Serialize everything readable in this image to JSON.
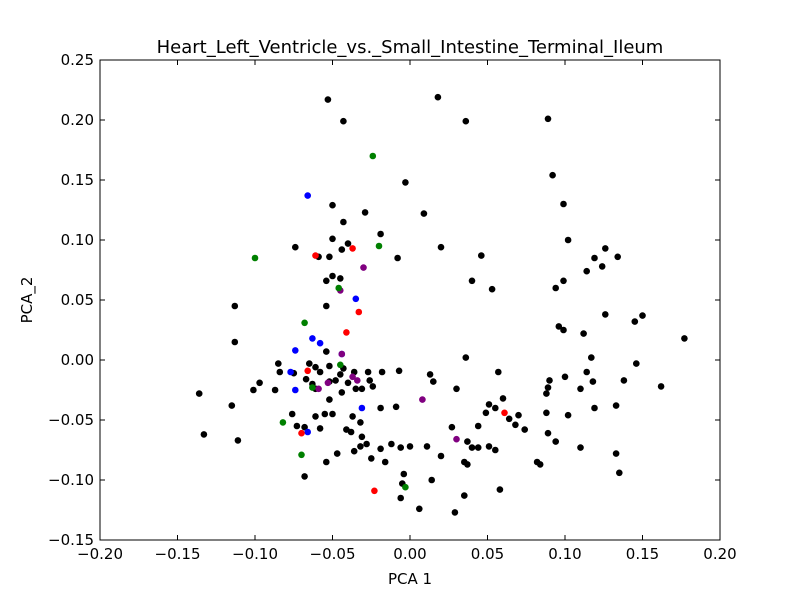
{
  "chart_data": {
    "type": "scatter",
    "title": "Heart_Left_Ventricle_vs._Small_Intestine_Terminal_Ileum",
    "xlabel": "PCA 1",
    "ylabel": "PCA_2",
    "xlim": [
      -0.2,
      0.2
    ],
    "ylim": [
      -0.15,
      0.25
    ],
    "xticks": [
      -0.2,
      -0.15,
      -0.1,
      -0.05,
      0.0,
      0.05,
      0.1,
      0.15,
      0.2
    ],
    "yticks": [
      -0.15,
      -0.1,
      -0.05,
      0.0,
      0.05,
      0.1,
      0.15,
      0.2,
      0.25
    ],
    "xtick_labels": [
      "−0.20",
      "−0.15",
      "−0.10",
      "−0.05",
      "0.00",
      "0.05",
      "0.10",
      "0.15",
      "0.20"
    ],
    "ytick_labels": [
      "−0.15",
      "−0.10",
      "−0.05",
      "0.00",
      "0.05",
      "0.10",
      "0.15",
      "0.20",
      "0.25"
    ],
    "grid": false,
    "legend": "none",
    "series": [
      {
        "color": "#000000",
        "points": [
          [
            -0.053,
            0.217
          ],
          [
            -0.043,
            0.199
          ],
          [
            0.018,
            0.219
          ],
          [
            0.036,
            0.199
          ],
          [
            0.089,
            0.201
          ],
          [
            -0.003,
            0.148
          ],
          [
            0.092,
            0.154
          ],
          [
            0.099,
            0.13
          ],
          [
            -0.05,
            0.129
          ],
          [
            -0.029,
            0.123
          ],
          [
            0.009,
            0.122
          ],
          [
            -0.043,
            0.115
          ],
          [
            -0.05,
            0.101
          ],
          [
            -0.019,
            0.105
          ],
          [
            -0.04,
            0.097
          ],
          [
            0.02,
            0.094
          ],
          [
            0.102,
            0.1
          ],
          [
            0.126,
            0.093
          ],
          [
            -0.074,
            0.094
          ],
          [
            -0.059,
            0.086
          ],
          [
            -0.052,
            0.086
          ],
          [
            -0.044,
            0.092
          ],
          [
            -0.008,
            0.085
          ],
          [
            0.046,
            0.087
          ],
          [
            0.119,
            0.085
          ],
          [
            0.134,
            0.086
          ],
          [
            -0.05,
            0.07
          ],
          [
            -0.045,
            0.068
          ],
          [
            -0.054,
            0.066
          ],
          [
            0.04,
            0.066
          ],
          [
            0.053,
            0.059
          ],
          [
            0.094,
            0.06
          ],
          [
            0.099,
            0.066
          ],
          [
            0.114,
            0.074
          ],
          [
            0.124,
            0.078
          ],
          [
            -0.113,
            0.045
          ],
          [
            -0.054,
            0.045
          ],
          [
            0.126,
            0.038
          ],
          [
            0.145,
            0.032
          ],
          [
            0.15,
            0.037
          ],
          [
            -0.113,
            0.015
          ],
          [
            -0.054,
            0.007
          ],
          [
            0.036,
            0.002
          ],
          [
            0.096,
            0.028
          ],
          [
            0.112,
            0.022
          ],
          [
            0.099,
            0.025
          ],
          [
            0.177,
            0.018
          ],
          [
            0.117,
            0.002
          ],
          [
            0.146,
            -0.003
          ],
          [
            -0.085,
            -0.003
          ],
          [
            -0.065,
            -0.003
          ],
          [
            -0.061,
            -0.006
          ],
          [
            -0.075,
            -0.011
          ],
          [
            -0.084,
            -0.01
          ],
          [
            -0.058,
            -0.01
          ],
          [
            -0.052,
            -0.005
          ],
          [
            -0.045,
            -0.012
          ],
          [
            -0.043,
            -0.007
          ],
          [
            -0.036,
            -0.01
          ],
          [
            -0.027,
            -0.01
          ],
          [
            -0.018,
            -0.01
          ],
          [
            -0.007,
            -0.009
          ],
          [
            0.013,
            -0.012
          ],
          [
            0.015,
            -0.018
          ],
          [
            0.057,
            -0.01
          ],
          [
            0.09,
            -0.017
          ],
          [
            0.1,
            -0.014
          ],
          [
            0.114,
            -0.01
          ],
          [
            0.118,
            -0.018
          ],
          [
            -0.097,
            -0.019
          ],
          [
            -0.067,
            -0.016
          ],
          [
            -0.063,
            -0.02
          ],
          [
            -0.052,
            -0.018
          ],
          [
            -0.048,
            -0.017
          ],
          [
            -0.026,
            -0.017
          ],
          [
            -0.024,
            -0.022
          ],
          [
            -0.136,
            -0.028
          ],
          [
            -0.101,
            -0.025
          ],
          [
            -0.087,
            -0.025
          ],
          [
            -0.061,
            -0.024
          ],
          [
            -0.052,
            -0.033
          ],
          [
            -0.044,
            -0.027
          ],
          [
            -0.04,
            -0.019
          ],
          [
            -0.035,
            -0.024
          ],
          [
            -0.031,
            -0.024
          ],
          [
            0.03,
            -0.024
          ],
          [
            0.051,
            -0.037
          ],
          [
            0.06,
            -0.032
          ],
          [
            0.089,
            -0.023
          ],
          [
            0.088,
            -0.028
          ],
          [
            0.11,
            -0.024
          ],
          [
            0.138,
            -0.017
          ],
          [
            0.162,
            -0.022
          ],
          [
            -0.115,
            -0.038
          ],
          [
            -0.055,
            -0.045
          ],
          [
            -0.037,
            -0.047
          ],
          [
            -0.032,
            -0.052
          ],
          [
            -0.019,
            -0.04
          ],
          [
            -0.009,
            -0.039
          ],
          [
            0.055,
            -0.04
          ],
          [
            0.07,
            -0.046
          ],
          [
            0.088,
            -0.044
          ],
          [
            0.102,
            -0.046
          ],
          [
            0.119,
            -0.04
          ],
          [
            0.133,
            -0.038
          ],
          [
            -0.076,
            -0.045
          ],
          [
            -0.061,
            -0.047
          ],
          [
            -0.058,
            -0.057
          ],
          [
            -0.05,
            -0.045
          ],
          [
            -0.041,
            -0.058
          ],
          [
            0.027,
            -0.056
          ],
          [
            0.044,
            -0.055
          ],
          [
            0.049,
            -0.044
          ],
          [
            0.064,
            -0.049
          ],
          [
            0.068,
            -0.054
          ],
          [
            0.074,
            -0.058
          ],
          [
            0.089,
            -0.061
          ],
          [
            -0.133,
            -0.062
          ],
          [
            -0.073,
            -0.055
          ],
          [
            -0.068,
            -0.056
          ],
          [
            -0.038,
            -0.06
          ],
          [
            -0.031,
            -0.064
          ],
          [
            -0.028,
            -0.07
          ],
          [
            -0.019,
            -0.074
          ],
          [
            -0.012,
            -0.07
          ],
          [
            -0.006,
            -0.073
          ],
          [
            0.0,
            -0.072
          ],
          [
            0.011,
            -0.072
          ],
          [
            0.02,
            -0.08
          ],
          [
            0.037,
            -0.068
          ],
          [
            0.04,
            -0.073
          ],
          [
            0.044,
            -0.073
          ],
          [
            0.051,
            -0.072
          ],
          [
            0.055,
            -0.075
          ],
          [
            0.094,
            -0.068
          ],
          [
            0.11,
            -0.073
          ],
          [
            -0.111,
            -0.067
          ],
          [
            -0.054,
            -0.085
          ],
          [
            -0.047,
            -0.078
          ],
          [
            -0.036,
            -0.076
          ],
          [
            -0.032,
            -0.072
          ],
          [
            -0.025,
            -0.082
          ],
          [
            -0.016,
            -0.085
          ],
          [
            -0.004,
            -0.095
          ],
          [
            0.035,
            -0.085
          ],
          [
            0.037,
            -0.087
          ],
          [
            0.082,
            -0.085
          ],
          [
            0.084,
            -0.087
          ],
          [
            0.133,
            -0.078
          ],
          [
            -0.068,
            -0.097
          ],
          [
            -0.005,
            -0.103
          ],
          [
            0.014,
            -0.1
          ],
          [
            0.035,
            -0.113
          ],
          [
            0.058,
            -0.108
          ],
          [
            0.135,
            -0.094
          ],
          [
            -0.006,
            -0.115
          ],
          [
            0.006,
            -0.124
          ],
          [
            0.029,
            -0.127
          ]
        ]
      },
      {
        "color": "#0000ff",
        "points": [
          [
            -0.066,
            0.137
          ],
          [
            -0.035,
            0.051
          ],
          [
            -0.063,
            0.018
          ],
          [
            -0.058,
            0.014
          ],
          [
            -0.074,
            0.008
          ],
          [
            -0.044,
            0.005
          ],
          [
            -0.077,
            -0.01
          ],
          [
            -0.074,
            -0.025
          ],
          [
            -0.066,
            -0.06
          ],
          [
            -0.031,
            -0.04
          ]
        ]
      },
      {
        "color": "#ff0000",
        "points": [
          [
            -0.061,
            0.087
          ],
          [
            -0.037,
            0.093
          ],
          [
            -0.033,
            0.04
          ],
          [
            -0.041,
            0.023
          ],
          [
            -0.066,
            -0.009
          ],
          [
            -0.07,
            -0.061
          ],
          [
            -0.023,
            -0.109
          ],
          [
            0.061,
            -0.044
          ]
        ]
      },
      {
        "color": "#800080",
        "points": [
          [
            -0.03,
            0.077
          ],
          [
            -0.045,
            0.058
          ],
          [
            -0.044,
            0.005
          ],
          [
            -0.037,
            -0.014
          ],
          [
            -0.034,
            -0.017
          ],
          [
            -0.053,
            -0.019
          ],
          [
            -0.059,
            -0.024
          ],
          [
            0.008,
            -0.033
          ],
          [
            0.03,
            -0.066
          ]
        ]
      },
      {
        "color": "#008000",
        "points": [
          [
            -0.024,
            0.17
          ],
          [
            -0.02,
            0.095
          ],
          [
            -0.1,
            0.085
          ],
          [
            -0.046,
            0.06
          ],
          [
            -0.068,
            0.031
          ],
          [
            -0.045,
            -0.004
          ],
          [
            -0.063,
            -0.023
          ],
          [
            -0.082,
            -0.052
          ],
          [
            -0.07,
            -0.079
          ],
          [
            -0.003,
            -0.106
          ]
        ]
      }
    ]
  }
}
